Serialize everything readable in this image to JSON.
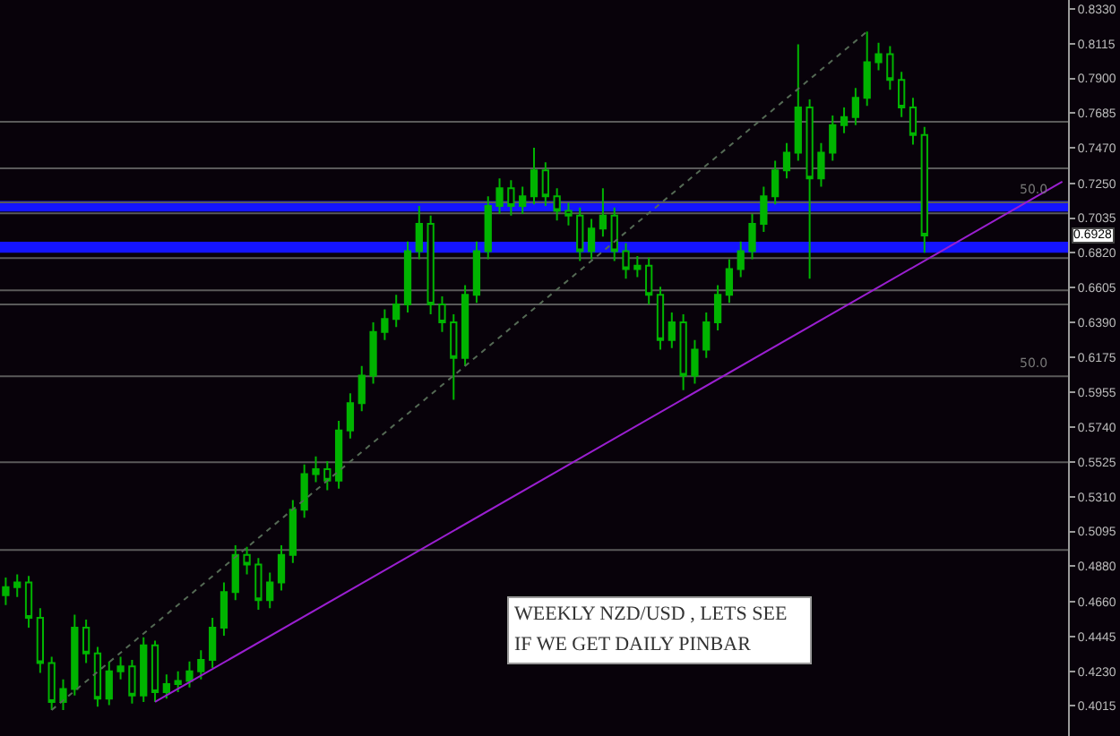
{
  "chart_data": {
    "type": "candlestick",
    "categories": [
      null,
      null,
      null,
      null,
      null,
      null,
      null,
      null,
      null,
      null,
      null,
      null,
      null,
      null,
      null,
      null,
      null,
      null,
      null,
      null,
      null,
      null,
      null,
      null,
      null,
      null,
      null,
      null,
      null,
      null,
      null,
      null,
      null,
      null,
      null,
      null,
      null,
      null,
      null,
      null,
      null,
      null,
      null,
      null,
      null,
      null,
      null,
      null,
      null,
      null,
      null,
      null,
      null,
      null,
      null,
      null,
      null,
      null,
      null,
      null,
      null,
      null,
      null,
      null,
      null,
      null,
      null,
      null,
      null,
      null,
      null,
      null,
      null,
      null,
      null,
      null,
      null,
      null,
      null,
      null,
      null,
      null,
      null,
      null,
      null,
      null,
      null,
      null,
      null,
      null,
      null,
      null,
      null
    ],
    "series": [
      {
        "color": "#00b400",
        "ohlc": [
          [
            0.47,
            0.481,
            0.464,
            0.475
          ],
          [
            0.475,
            0.483,
            0.469,
            0.478
          ],
          [
            0.478,
            0.482,
            0.45,
            0.456
          ],
          [
            0.456,
            0.462,
            0.422,
            0.428
          ],
          [
            0.428,
            0.432,
            0.399,
            0.404
          ],
          [
            0.404,
            0.418,
            0.399,
            0.412
          ],
          [
            0.412,
            0.458,
            0.408,
            0.45
          ],
          [
            0.45,
            0.455,
            0.428,
            0.434
          ],
          [
            0.434,
            0.438,
            0.401,
            0.406
          ],
          [
            0.406,
            0.429,
            0.402,
            0.423
          ],
          [
            0.423,
            0.432,
            0.418,
            0.426
          ],
          [
            0.426,
            0.43,
            0.403,
            0.408
          ],
          [
            0.408,
            0.444,
            0.404,
            0.439
          ],
          [
            0.439,
            0.442,
            0.404,
            0.41
          ],
          [
            0.41,
            0.421,
            0.406,
            0.415
          ],
          [
            0.415,
            0.423,
            0.41,
            0.417
          ],
          [
            0.417,
            0.429,
            0.413,
            0.423
          ],
          [
            0.423,
            0.436,
            0.418,
            0.43
          ],
          [
            0.43,
            0.456,
            0.425,
            0.45
          ],
          [
            0.45,
            0.478,
            0.445,
            0.472
          ],
          [
            0.472,
            0.501,
            0.467,
            0.495
          ],
          [
            0.495,
            0.5,
            0.483,
            0.489
          ],
          [
            0.489,
            0.493,
            0.461,
            0.467
          ],
          [
            0.467,
            0.484,
            0.462,
            0.478
          ],
          [
            0.478,
            0.501,
            0.473,
            0.495
          ],
          [
            0.495,
            0.529,
            0.49,
            0.523
          ],
          [
            0.523,
            0.551,
            0.518,
            0.545
          ],
          [
            0.545,
            0.556,
            0.54,
            0.548
          ],
          [
            0.548,
            0.553,
            0.535,
            0.541
          ],
          [
            0.541,
            0.578,
            0.536,
            0.572
          ],
          [
            0.572,
            0.595,
            0.567,
            0.589
          ],
          [
            0.589,
            0.612,
            0.584,
            0.606
          ],
          [
            0.606,
            0.639,
            0.601,
            0.633
          ],
          [
            0.633,
            0.647,
            0.628,
            0.641
          ],
          [
            0.641,
            0.656,
            0.636,
            0.65
          ],
          [
            0.65,
            0.689,
            0.645,
            0.683
          ],
          [
            0.683,
            0.711,
            0.678,
            0.7
          ],
          [
            0.7,
            0.705,
            0.644,
            0.65
          ],
          [
            0.65,
            0.655,
            0.633,
            0.639
          ],
          [
            0.639,
            0.644,
            0.591,
            0.617
          ],
          [
            0.617,
            0.662,
            0.612,
            0.656
          ],
          [
            0.656,
            0.689,
            0.651,
            0.683
          ],
          [
            0.683,
            0.717,
            0.678,
            0.711
          ],
          [
            0.711,
            0.728,
            0.706,
            0.722
          ],
          [
            0.722,
            0.727,
            0.705,
            0.711
          ],
          [
            0.711,
            0.723,
            0.706,
            0.717
          ],
          [
            0.717,
            0.747,
            0.712,
            0.733
          ],
          [
            0.733,
            0.738,
            0.711,
            0.717
          ],
          [
            0.717,
            0.722,
            0.702,
            0.708
          ],
          [
            0.708,
            0.713,
            0.699,
            0.705
          ],
          [
            0.705,
            0.71,
            0.677,
            0.683
          ],
          [
            0.683,
            0.703,
            0.678,
            0.697
          ],
          [
            0.697,
            0.722,
            0.692,
            0.705
          ],
          [
            0.705,
            0.71,
            0.677,
            0.683
          ],
          [
            0.683,
            0.688,
            0.666,
            0.672
          ],
          [
            0.672,
            0.68,
            0.667,
            0.674
          ],
          [
            0.674,
            0.679,
            0.65,
            0.656
          ],
          [
            0.656,
            0.661,
            0.622,
            0.628
          ],
          [
            0.628,
            0.645,
            0.623,
            0.639
          ],
          [
            0.639,
            0.644,
            0.597,
            0.606
          ],
          [
            0.606,
            0.628,
            0.601,
            0.622
          ],
          [
            0.622,
            0.645,
            0.617,
            0.639
          ],
          [
            0.639,
            0.662,
            0.634,
            0.656
          ],
          [
            0.656,
            0.678,
            0.651,
            0.672
          ],
          [
            0.672,
            0.689,
            0.667,
            0.683
          ],
          [
            0.683,
            0.706,
            0.678,
            0.7
          ],
          [
            0.7,
            0.723,
            0.695,
            0.717
          ],
          [
            0.717,
            0.739,
            0.712,
            0.733
          ],
          [
            0.733,
            0.75,
            0.728,
            0.744
          ],
          [
            0.744,
            0.811,
            0.739,
            0.772
          ],
          [
            0.772,
            0.777,
            0.666,
            0.728
          ],
          [
            0.728,
            0.75,
            0.723,
            0.744
          ],
          [
            0.744,
            0.767,
            0.739,
            0.761
          ],
          [
            0.761,
            0.772,
            0.756,
            0.766
          ],
          [
            0.766,
            0.784,
            0.761,
            0.778
          ],
          [
            0.778,
            0.819,
            0.773,
            0.8
          ],
          [
            0.8,
            0.812,
            0.795,
            0.805
          ],
          [
            0.805,
            0.81,
            0.783,
            0.789
          ],
          [
            0.789,
            0.794,
            0.766,
            0.772
          ],
          [
            0.772,
            0.778,
            0.749,
            0.755
          ],
          [
            0.755,
            0.76,
            0.682,
            0.6928
          ],
          null,
          null,
          null,
          null,
          null,
          null,
          null,
          null,
          null,
          null,
          null,
          null
        ]
      },
      {
        "type": "line",
        "color": "#9a1fd0",
        "values": [
          null,
          null,
          null,
          null,
          null,
          null,
          null,
          null,
          null,
          null,
          null,
          null,
          null,
          0.404,
          null,
          null,
          null,
          null,
          null,
          null,
          null,
          null,
          null,
          null,
          null,
          null,
          null,
          null,
          null,
          null,
          null,
          null,
          null,
          null,
          null,
          null,
          null,
          null,
          null,
          null,
          null,
          null,
          null,
          null,
          null,
          null,
          null,
          null,
          null,
          null,
          null,
          null,
          null,
          null,
          null,
          null,
          null,
          null,
          null,
          null,
          null,
          null,
          null,
          null,
          null,
          null,
          null,
          null,
          null,
          null,
          null,
          null,
          null,
          null,
          null,
          null,
          null,
          null,
          null,
          null,
          null,
          null,
          null,
          null,
          null,
          null,
          null,
          null,
          null,
          null,
          null,
          null,
          0.726
        ]
      },
      {
        "type": "line",
        "color": "#556a55",
        "line_style": "dotted",
        "values": [
          null,
          null,
          null,
          null,
          0.399,
          null,
          null,
          null,
          null,
          null,
          null,
          null,
          null,
          null,
          null,
          null,
          null,
          null,
          null,
          null,
          null,
          null,
          null,
          null,
          null,
          null,
          null,
          null,
          null,
          null,
          null,
          null,
          null,
          null,
          null,
          null,
          null,
          null,
          null,
          null,
          null,
          null,
          null,
          null,
          null,
          null,
          null,
          null,
          null,
          null,
          null,
          null,
          null,
          null,
          null,
          null,
          null,
          null,
          null,
          null,
          null,
          null,
          null,
          null,
          null,
          null,
          null,
          null,
          null,
          null,
          null,
          null,
          null,
          null,
          null,
          0.819,
          null,
          null,
          null,
          null,
          null,
          null,
          null,
          null,
          null,
          null,
          null,
          null,
          null,
          null,
          null,
          null,
          null
        ]
      }
    ],
    "ylim": [
      0.3829,
      0.8385
    ],
    "yticks": [
      {
        "value": 0.833,
        "label": "0.8330"
      },
      {
        "value": 0.8115,
        "label": "0.8115"
      },
      {
        "value": 0.79,
        "label": "0.7900"
      },
      {
        "value": 0.7685,
        "label": "0.7685"
      },
      {
        "value": 0.747,
        "label": "0.7470"
      },
      {
        "value": 0.725,
        "label": "0.7250"
      },
      {
        "value": 0.7035,
        "label": "0.7035"
      },
      {
        "value": 0.682,
        "label": "0.6820"
      },
      {
        "value": 0.6605,
        "label": "0.6605"
      },
      {
        "value": 0.639,
        "label": "0.6390"
      },
      {
        "value": 0.6175,
        "label": "0.6175"
      },
      {
        "value": 0.5955,
        "label": "0.5955"
      },
      {
        "value": 0.574,
        "label": "0.5740"
      },
      {
        "value": 0.5525,
        "label": "0.5525"
      },
      {
        "value": 0.531,
        "label": "0.5310"
      },
      {
        "value": 0.5095,
        "label": "0.5095"
      },
      {
        "value": 0.488,
        "label": "0.4880"
      },
      {
        "value": 0.466,
        "label": "0.4660"
      },
      {
        "value": 0.4445,
        "label": "0.4445"
      },
      {
        "value": 0.423,
        "label": "0.4230"
      },
      {
        "value": 0.4015,
        "label": "0.4015"
      }
    ],
    "tick_labels": "y",
    "ref_lines": [
      {
        "axis": "y",
        "value": 0.7631,
        "color": "#5a5a5a"
      },
      {
        "axis": "y",
        "value": 0.7343,
        "color": "#5a5a5a"
      },
      {
        "axis": "y",
        "value": 0.7132,
        "color": "#5a5a5a"
      },
      {
        "axis": "y",
        "value": 0.7065,
        "color": "#5a5a5a"
      },
      {
        "axis": "y",
        "value": 0.6788,
        "color": "#5a5a5a"
      },
      {
        "axis": "y",
        "value": 0.6588,
        "color": "#5a5a5a"
      },
      {
        "axis": "y",
        "value": 0.65,
        "color": "#5a5a5a"
      },
      {
        "axis": "y",
        "value": 0.6056,
        "color": "#5a5a5a"
      },
      {
        "axis": "y",
        "value": 0.5524,
        "color": "#5a5a5a"
      },
      {
        "axis": "y",
        "value": 0.498,
        "color": "#5a5a5a"
      }
    ],
    "bands": [
      {
        "axis": "y",
        "from": 0.7075,
        "to": 0.714,
        "color": "#1414ff"
      },
      {
        "axis": "y",
        "from": 0.6821,
        "to": 0.6888,
        "color": "#1414ff"
      }
    ],
    "annotations": [
      {
        "text": "0.6928",
        "y": 0.6928
      },
      {
        "text": "50.0",
        "y": 0.7132
      },
      {
        "text": "50.0",
        "y": 0.6056
      },
      "WEEKLY NZD/USD , LETS SEE IF WE GET DAILY PINBAR"
    ],
    "grid": false
  }
}
